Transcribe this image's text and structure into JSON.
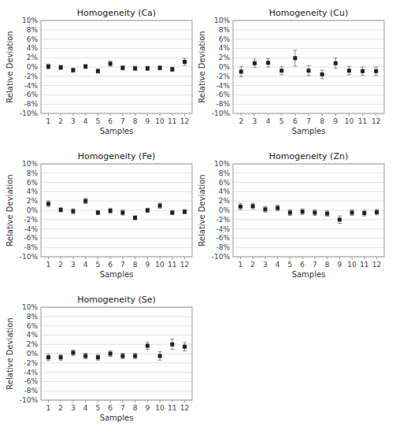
{
  "chart_data": [
    {
      "type": "scatter",
      "title": "Homogeneity (Ca)",
      "xlabel": "Samples",
      "ylabel": "Relative Deviation",
      "x": [
        1,
        2,
        3,
        4,
        5,
        6,
        7,
        8,
        9,
        10,
        11,
        12
      ],
      "values": [
        0.1,
        -0.1,
        -0.7,
        0.1,
        -0.9,
        0.7,
        -0.2,
        -0.3,
        -0.3,
        -0.2,
        -0.5,
        1.1
      ],
      "errors": [
        0.55,
        0.45,
        0.45,
        0.45,
        0.45,
        0.55,
        0.45,
        0.45,
        0.45,
        0.45,
        0.45,
        0.75
      ],
      "xlim": [
        0.4,
        12.6
      ],
      "xticks": [
        1,
        2,
        3,
        4,
        5,
        6,
        7,
        8,
        9,
        10,
        11,
        12
      ],
      "ylim": [
        -10,
        10
      ],
      "yticks": [
        {
          "value": -10,
          "label": "-10%"
        },
        {
          "value": -8,
          "label": "-8%"
        },
        {
          "value": -6,
          "label": "-6%"
        },
        {
          "value": -4,
          "label": "-4%"
        },
        {
          "value": -2,
          "label": "-2%"
        },
        {
          "value": 0,
          "label": "0%"
        },
        {
          "value": 2,
          "label": "2%"
        },
        {
          "value": 4,
          "label": "4%"
        },
        {
          "value": 6,
          "label": "6%"
        },
        {
          "value": 8,
          "label": "8%"
        },
        {
          "value": 10,
          "label": "10%"
        }
      ],
      "grid": true,
      "color": "#222222",
      "marker": "square"
    },
    {
      "type": "scatter",
      "title": "Homogeneity (Cu)",
      "xlabel": "Samples",
      "ylabel": "Relative Deviation",
      "x": [
        2,
        3,
        4,
        5,
        6,
        7,
        8,
        9,
        10,
        11,
        12
      ],
      "values": [
        -1.0,
        0.8,
        0.9,
        -0.8,
        1.9,
        -0.8,
        -1.6,
        0.8,
        -0.8,
        -0.9,
        -0.9
      ],
      "errors": [
        1.1,
        0.9,
        0.9,
        0.9,
        1.7,
        1.1,
        0.9,
        1.1,
        0.9,
        0.9,
        0.9
      ],
      "xlim": [
        1.4,
        12.6
      ],
      "xticks": [
        2,
        3,
        4,
        5,
        6,
        7,
        8,
        9,
        10,
        11,
        12
      ],
      "ylim": [
        -10,
        10
      ],
      "yticks": [
        {
          "value": -10,
          "label": "-10%"
        },
        {
          "value": -8,
          "label": "-8%"
        },
        {
          "value": -6,
          "label": "-6%"
        },
        {
          "value": -4,
          "label": "-4%"
        },
        {
          "value": -2,
          "label": "-2%"
        },
        {
          "value": 0,
          "label": "0%"
        },
        {
          "value": 2,
          "label": "2%"
        },
        {
          "value": 4,
          "label": "4%"
        },
        {
          "value": 6,
          "label": "6%"
        },
        {
          "value": 8,
          "label": "8%"
        },
        {
          "value": 10,
          "label": "10%"
        }
      ],
      "grid": true,
      "color": "#222222",
      "marker": "square"
    },
    {
      "type": "scatter",
      "title": "Homogeneity (Fe)",
      "xlabel": "Samples",
      "ylabel": "Relative Deviation",
      "x": [
        1,
        2,
        3,
        4,
        5,
        6,
        7,
        8,
        9,
        10,
        11,
        12
      ],
      "values": [
        1.4,
        0.1,
        -0.2,
        2.0,
        -0.5,
        -0.1,
        -0.5,
        -1.6,
        0.0,
        1.0,
        -0.5,
        -0.3
      ],
      "errors": [
        0.65,
        0.45,
        0.55,
        0.55,
        0.45,
        0.55,
        0.55,
        0.45,
        0.45,
        0.55,
        0.45,
        0.45
      ],
      "xlim": [
        0.4,
        12.6
      ],
      "xticks": [
        1,
        2,
        3,
        4,
        5,
        6,
        7,
        8,
        9,
        10,
        11,
        12
      ],
      "ylim": [
        -10,
        10
      ],
      "yticks": [
        {
          "value": -10,
          "label": "-10%"
        },
        {
          "value": -8,
          "label": "-8%"
        },
        {
          "value": -6,
          "label": "-6%"
        },
        {
          "value": -4,
          "label": "-4%"
        },
        {
          "value": -2,
          "label": "-2%"
        },
        {
          "value": 0,
          "label": "0%"
        },
        {
          "value": 2,
          "label": "2%"
        },
        {
          "value": 4,
          "label": "4%"
        },
        {
          "value": 6,
          "label": "6%"
        },
        {
          "value": 8,
          "label": "8%"
        },
        {
          "value": 10,
          "label": "10%"
        }
      ],
      "grid": true,
      "color": "#222222",
      "marker": "square"
    },
    {
      "type": "scatter",
      "title": "Homogeneity (Zn)",
      "xlabel": "Samples",
      "ylabel": "Relative Deviation",
      "x": [
        1,
        2,
        3,
        4,
        5,
        6,
        7,
        8,
        9,
        10,
        11,
        12
      ],
      "values": [
        0.8,
        0.9,
        0.2,
        0.5,
        -0.5,
        -0.3,
        -0.5,
        -0.7,
        -2.0,
        -0.5,
        -0.6,
        -0.4
      ],
      "errors": [
        0.7,
        0.6,
        0.6,
        0.6,
        0.6,
        0.6,
        0.6,
        0.6,
        0.8,
        0.6,
        0.6,
        0.6
      ],
      "xlim": [
        0.4,
        12.6
      ],
      "xticks": [
        1,
        2,
        3,
        4,
        5,
        6,
        7,
        8,
        9,
        10,
        11,
        12
      ],
      "ylim": [
        -10,
        10
      ],
      "yticks": [
        {
          "value": -10,
          "label": "-10%"
        },
        {
          "value": -8,
          "label": "-8%"
        },
        {
          "value": -6,
          "label": "-6%"
        },
        {
          "value": -4,
          "label": "-4%"
        },
        {
          "value": -2,
          "label": "-2%"
        },
        {
          "value": 0,
          "label": "0%"
        },
        {
          "value": 2,
          "label": "2%"
        },
        {
          "value": 4,
          "label": "4%"
        },
        {
          "value": 6,
          "label": "6%"
        },
        {
          "value": 8,
          "label": "8%"
        },
        {
          "value": 10,
          "label": "10%"
        }
      ],
      "grid": true,
      "color": "#222222",
      "marker": "square"
    },
    {
      "type": "scatter",
      "title": "Homogeneity (Se)",
      "xlabel": "Samples",
      "ylabel": "Relative Deviation",
      "x": [
        1,
        2,
        3,
        4,
        5,
        6,
        7,
        8,
        9,
        10,
        11,
        12
      ],
      "values": [
        -0.8,
        -0.8,
        0.2,
        -0.5,
        -0.8,
        0.0,
        -0.5,
        -0.5,
        1.7,
        -0.5,
        2.0,
        1.5
      ],
      "errors": [
        0.7,
        0.6,
        0.6,
        0.6,
        0.6,
        0.6,
        0.6,
        0.6,
        0.8,
        0.9,
        1.1,
        0.9
      ],
      "xlim": [
        0.4,
        12.6
      ],
      "xticks": [
        1,
        2,
        3,
        4,
        5,
        6,
        7,
        8,
        9,
        10,
        11,
        12
      ],
      "ylim": [
        -10,
        10
      ],
      "yticks": [
        {
          "value": -10,
          "label": "-10%"
        },
        {
          "value": -8,
          "label": "-8%"
        },
        {
          "value": -6,
          "label": "-6%"
        },
        {
          "value": -4,
          "label": "-4%"
        },
        {
          "value": -2,
          "label": "-2%"
        },
        {
          "value": 0,
          "label": "0%"
        },
        {
          "value": 2,
          "label": "2%"
        },
        {
          "value": 4,
          "label": "4%"
        },
        {
          "value": 6,
          "label": "6%"
        },
        {
          "value": 8,
          "label": "8%"
        },
        {
          "value": 10,
          "label": "10%"
        }
      ],
      "grid": true,
      "color": "#222222",
      "marker": "square"
    }
  ]
}
